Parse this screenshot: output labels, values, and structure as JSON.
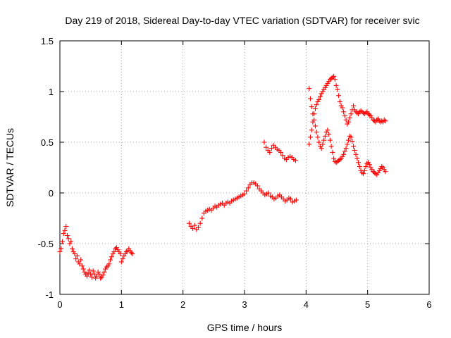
{
  "chart_data": {
    "type": "scatter",
    "title": "Day 219 of 2018, Sidereal Day-to-day VTEC variation (SDTVAR) for receiver svic",
    "xlabel": "GPS time / hours",
    "ylabel": "SDTVAR / TECUs",
    "xlim": [
      0,
      6
    ],
    "ylim": [
      -1,
      1.5
    ],
    "xticks": [
      0,
      1,
      2,
      3,
      4,
      5,
      6
    ],
    "yticks": [
      -1,
      -0.5,
      0,
      0.5,
      1,
      1.5
    ],
    "xtick_labels": [
      "0",
      "1",
      "2",
      "3",
      "4",
      "5",
      "6"
    ],
    "ytick_labels": [
      "-1",
      "-0.5",
      "0",
      "0.5",
      "1",
      "1.5"
    ],
    "grid": true,
    "marker": "+",
    "color": "#ff0000",
    "series": [
      {
        "name": "svic",
        "x": [
          0.0,
          0.02,
          0.04,
          0.06,
          0.08,
          0.1,
          0.12,
          0.14,
          0.16,
          0.18,
          0.2,
          0.22,
          0.24,
          0.26,
          0.28,
          0.3,
          0.32,
          0.34,
          0.36,
          0.38,
          0.4,
          0.42,
          0.44,
          0.46,
          0.48,
          0.5,
          0.52,
          0.54,
          0.56,
          0.58,
          0.6,
          0.62,
          0.64,
          0.66,
          0.68,
          0.7,
          0.72,
          0.74,
          0.76,
          0.78,
          0.8,
          0.82,
          0.84,
          0.86,
          0.88,
          0.9,
          0.92,
          0.94,
          0.96,
          0.98,
          1.0,
          1.02,
          1.04,
          1.06,
          1.08,
          1.1,
          1.12,
          1.14,
          1.16,
          1.18,
          2.1,
          2.13,
          2.16,
          2.19,
          2.22,
          2.25,
          2.28,
          2.31,
          2.34,
          2.37,
          2.4,
          2.43,
          2.46,
          2.49,
          2.52,
          2.55,
          2.58,
          2.61,
          2.64,
          2.67,
          2.7,
          2.73,
          2.76,
          2.79,
          2.82,
          2.85,
          2.88,
          2.91,
          2.94,
          2.97,
          3.0,
          3.03,
          3.06,
          3.09,
          3.12,
          3.15,
          3.18,
          3.21,
          3.24,
          3.27,
          3.3,
          3.33,
          3.36,
          3.39,
          3.42,
          3.45,
          3.48,
          3.51,
          3.54,
          3.57,
          3.6,
          3.63,
          3.66,
          3.69,
          3.72,
          3.75,
          3.78,
          3.81,
          3.84,
          3.32,
          3.35,
          3.38,
          3.41,
          3.44,
          3.47,
          3.5,
          3.53,
          3.56,
          3.59,
          3.62,
          3.65,
          3.68,
          3.71,
          3.74,
          3.77,
          3.8,
          3.83,
          4.05,
          4.07,
          4.09,
          4.11,
          4.13,
          4.15,
          4.17,
          4.19,
          4.21,
          4.23,
          4.25,
          4.27,
          4.29,
          4.31,
          4.33,
          4.35,
          4.37,
          4.39,
          4.41,
          4.43,
          4.45,
          4.47,
          4.49,
          4.51,
          4.53,
          4.55,
          4.57,
          4.59,
          4.61,
          4.63,
          4.65,
          4.67,
          4.69,
          4.71,
          4.73,
          4.75,
          4.77,
          4.79,
          4.81,
          4.83,
          4.85,
          4.87,
          4.89,
          4.91,
          4.93,
          4.95,
          4.97,
          4.99,
          5.01,
          5.03,
          5.05,
          5.07,
          5.09,
          5.11,
          5.13,
          5.15,
          5.17,
          5.19,
          5.21,
          5.23,
          5.25,
          5.27,
          5.29,
          4.05,
          4.07,
          4.09,
          4.11,
          4.13,
          4.15,
          4.17,
          4.19,
          4.21,
          4.23,
          4.25,
          4.27,
          4.29,
          4.31,
          4.33,
          4.35,
          4.37,
          4.39,
          4.41,
          4.43,
          4.45,
          4.47,
          4.49,
          4.51,
          4.53,
          4.55,
          4.57,
          4.59,
          4.61,
          4.63,
          4.65,
          4.67,
          4.69,
          4.71,
          4.73,
          4.75,
          4.77,
          4.79,
          4.81,
          4.83,
          4.85,
          4.87,
          4.89,
          4.91,
          4.93,
          4.95,
          4.97,
          4.99,
          5.01,
          5.03,
          5.05,
          5.07,
          5.09,
          5.11,
          5.13,
          5.15,
          5.17,
          5.19,
          5.21,
          5.23,
          5.25,
          5.27,
          5.29
        ],
        "y": [
          -0.58,
          -0.55,
          -0.48,
          -0.4,
          -0.37,
          -0.33,
          -0.42,
          -0.45,
          -0.5,
          -0.48,
          -0.55,
          -0.58,
          -0.6,
          -0.65,
          -0.62,
          -0.68,
          -0.7,
          -0.66,
          -0.72,
          -0.75,
          -0.78,
          -0.8,
          -0.82,
          -0.79,
          -0.76,
          -0.8,
          -0.83,
          -0.77,
          -0.8,
          -0.84,
          -0.82,
          -0.78,
          -0.8,
          -0.84,
          -0.83,
          -0.81,
          -0.78,
          -0.75,
          -0.73,
          -0.72,
          -0.7,
          -0.66,
          -0.63,
          -0.6,
          -0.58,
          -0.55,
          -0.54,
          -0.56,
          -0.58,
          -0.6,
          -0.68,
          -0.65,
          -0.62,
          -0.6,
          -0.58,
          -0.57,
          -0.55,
          -0.57,
          -0.59,
          -0.6,
          -0.3,
          -0.33,
          -0.35,
          -0.32,
          -0.36,
          -0.34,
          -0.3,
          -0.25,
          -0.2,
          -0.18,
          -0.17,
          -0.16,
          -0.17,
          -0.15,
          -0.13,
          -0.14,
          -0.12,
          -0.11,
          -0.1,
          -0.12,
          -0.1,
          -0.09,
          -0.1,
          -0.08,
          -0.07,
          -0.06,
          -0.05,
          -0.04,
          -0.03,
          -0.02,
          -0.01,
          0.02,
          0.05,
          0.08,
          0.1,
          0.1,
          0.09,
          0.07,
          0.04,
          0.02,
          0.0,
          -0.02,
          -0.01,
          0.0,
          -0.03,
          -0.04,
          -0.06,
          -0.05,
          -0.03,
          -0.02,
          -0.04,
          -0.06,
          -0.08,
          -0.07,
          -0.05,
          -0.06,
          -0.09,
          -0.08,
          -0.07,
          0.5,
          0.45,
          0.42,
          0.4,
          0.44,
          0.47,
          0.45,
          0.43,
          0.42,
          0.4,
          0.37,
          0.34,
          0.33,
          0.35,
          0.36,
          0.35,
          0.33,
          0.32,
          0.48,
          0.55,
          0.62,
          0.7,
          0.78,
          0.83,
          0.87,
          0.9,
          0.92,
          0.95,
          0.98,
          1.0,
          1.02,
          1.04,
          1.06,
          1.08,
          1.1,
          1.12,
          1.13,
          1.14,
          1.15,
          1.12,
          1.06,
          1.02,
          0.96,
          0.9,
          0.86,
          0.84,
          0.8,
          0.76,
          0.72,
          0.68,
          0.7,
          0.74,
          0.78,
          0.82,
          0.86,
          0.82,
          0.8,
          0.79,
          0.78,
          0.8,
          0.81,
          0.8,
          0.79,
          0.78,
          0.79,
          0.8,
          0.78,
          0.77,
          0.76,
          0.74,
          0.72,
          0.71,
          0.7,
          0.72,
          0.73,
          0.71,
          0.7,
          0.71,
          0.7,
          0.72,
          0.71,
          1.03,
          0.93,
          0.85,
          0.78,
          0.72,
          0.66,
          0.6,
          0.55,
          0.5,
          0.46,
          0.44,
          0.48,
          0.52,
          0.56,
          0.6,
          0.62,
          0.58,
          0.52,
          0.46,
          0.4,
          0.34,
          0.31,
          0.3,
          0.31,
          0.32,
          0.33,
          0.34,
          0.36,
          0.38,
          0.41,
          0.44,
          0.48,
          0.52,
          0.56,
          0.55,
          0.51,
          0.46,
          0.42,
          0.38,
          0.34,
          0.3,
          0.26,
          0.22,
          0.2,
          0.19,
          0.22,
          0.26,
          0.29,
          0.3,
          0.28,
          0.25,
          0.23,
          0.21,
          0.2,
          0.19,
          0.18,
          0.2,
          0.22,
          0.24,
          0.26,
          0.25,
          0.23,
          0.21
        ]
      }
    ]
  }
}
